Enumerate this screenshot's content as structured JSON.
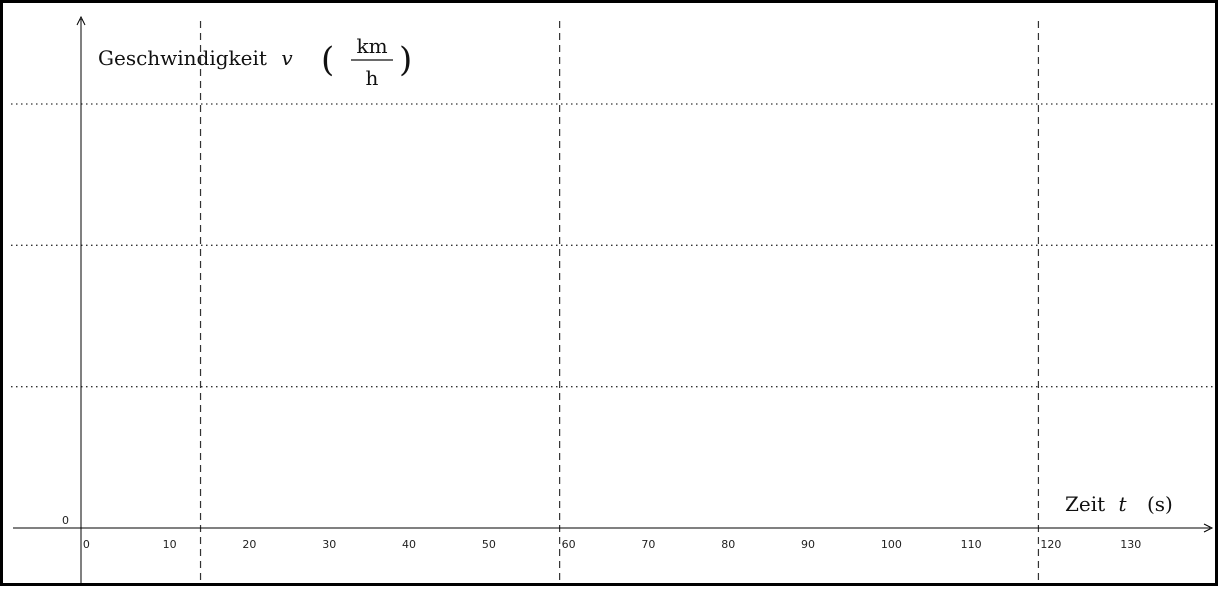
{
  "chart_data": {
    "type": "line",
    "title": "",
    "ylabel": {
      "text": "Geschwindigkeit",
      "variable": "v",
      "unit_numerator": "km",
      "unit_denominator": "h"
    },
    "xlabel": {
      "text": "Zeit",
      "variable": "t",
      "unit": "(s)"
    },
    "origin_label": "0",
    "x_ticks": [
      "0",
      "10",
      "20",
      "30",
      "40",
      "50",
      "60",
      "70",
      "80",
      "90",
      "100",
      "110",
      "120",
      "130"
    ],
    "x_tick_values": [
      0,
      10,
      20,
      30,
      40,
      50,
      60,
      70,
      80,
      90,
      100,
      110,
      120,
      130
    ],
    "xlim": [
      -8.5,
      141.5
    ],
    "vertical_dashed_lines_at": [
      15,
      60,
      120
    ],
    "horizontal_dotted_lines": 3,
    "series": [],
    "grid": false,
    "colors": {
      "axis": "#000000",
      "guides": "#333333",
      "border": "#000000"
    }
  }
}
